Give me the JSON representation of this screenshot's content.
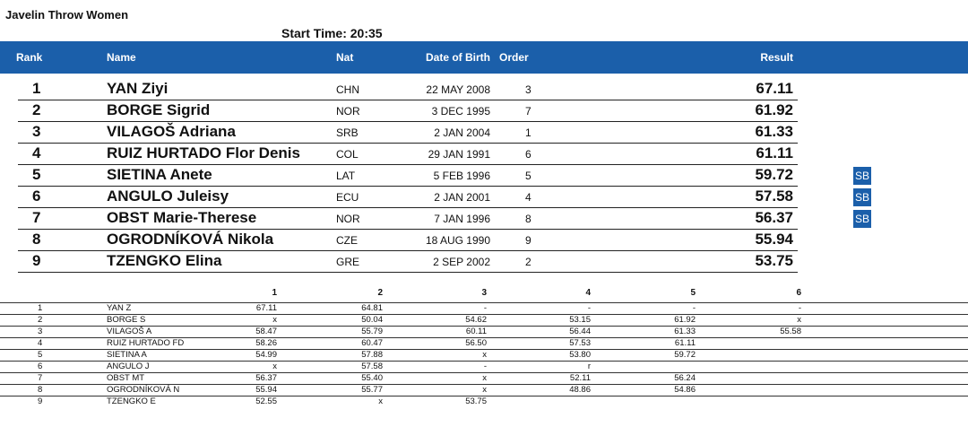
{
  "event": {
    "title": "Javelin Throw Women",
    "start_time_label": "Start Time:",
    "start_time": "20:35"
  },
  "header": {
    "rank": "Rank",
    "name": "Name",
    "nat": "Nat",
    "dob": "Date of Birth",
    "order": "Order",
    "result": "Result"
  },
  "results": [
    {
      "rank": "1",
      "name": "YAN Ziyi",
      "nat": "CHN",
      "dob": "22 MAY 2008",
      "order": "3",
      "result": "67.11",
      "badge": ""
    },
    {
      "rank": "2",
      "name": "BORGE Sigrid",
      "nat": "NOR",
      "dob": "3 DEC 1995",
      "order": "7",
      "result": "61.92",
      "badge": ""
    },
    {
      "rank": "3",
      "name": "VILAGOŠ Adriana",
      "nat": "SRB",
      "dob": "2 JAN 2004",
      "order": "1",
      "result": "61.33",
      "badge": ""
    },
    {
      "rank": "4",
      "name": "RUIZ HURTADO Flor Denis",
      "nat": "COL",
      "dob": "29 JAN 1991",
      "order": "6",
      "result": "61.11",
      "badge": ""
    },
    {
      "rank": "5",
      "name": "SIETINA Anete",
      "nat": "LAT",
      "dob": "5 FEB 1996",
      "order": "5",
      "result": "59.72",
      "badge": "SB"
    },
    {
      "rank": "6",
      "name": "ANGULO Juleisy",
      "nat": "ECU",
      "dob": "2 JAN 2001",
      "order": "4",
      "result": "57.58",
      "badge": "SB"
    },
    {
      "rank": "7",
      "name": "OBST Marie-Therese",
      "nat": "NOR",
      "dob": "7 JAN 1996",
      "order": "8",
      "result": "56.37",
      "badge": "SB"
    },
    {
      "rank": "8",
      "name": "OGRODNÍKOVÁ Nikola",
      "nat": "CZE",
      "dob": "18 AUG 1990",
      "order": "9",
      "result": "55.94",
      "badge": ""
    },
    {
      "rank": "9",
      "name": "TZENGKO Elina",
      "nat": "GRE",
      "dob": "2 SEP 2002",
      "order": "2",
      "result": "53.75",
      "badge": ""
    }
  ],
  "series_header": [
    "1",
    "2",
    "3",
    "4",
    "5",
    "6"
  ],
  "series": [
    {
      "rank": "1",
      "name": "YAN Z",
      "attempts": [
        "67.11",
        "64.81",
        "-",
        "-",
        "-",
        "-"
      ]
    },
    {
      "rank": "2",
      "name": "BORGE S",
      "attempts": [
        "x",
        "50.04",
        "54.62",
        "53.15",
        "61.92",
        "x"
      ]
    },
    {
      "rank": "3",
      "name": "VILAGOŠ A",
      "attempts": [
        "58.47",
        "55.79",
        "60.11",
        "56.44",
        "61.33",
        "55.58"
      ]
    },
    {
      "rank": "4",
      "name": "RUIZ HURTADO FD",
      "attempts": [
        "58.26",
        "60.47",
        "56.50",
        "57.53",
        "61.11",
        ""
      ]
    },
    {
      "rank": "5",
      "name": "SIETINA A",
      "attempts": [
        "54.99",
        "57.88",
        "x",
        "53.80",
        "59.72",
        ""
      ]
    },
    {
      "rank": "6",
      "name": "ANGULO J",
      "attempts": [
        "x",
        "57.58",
        "-",
        "r",
        "",
        ""
      ]
    },
    {
      "rank": "7",
      "name": "OBST MT",
      "attempts": [
        "56.37",
        "55.40",
        "x",
        "52.11",
        "56.24",
        ""
      ]
    },
    {
      "rank": "8",
      "name": "OGRODNÍKOVÁ N",
      "attempts": [
        "55.94",
        "55.77",
        "x",
        "48.86",
        "54.86",
        ""
      ]
    },
    {
      "rank": "9",
      "name": "TZENGKO E",
      "attempts": [
        "52.55",
        "x",
        "53.75",
        "",
        "",
        ""
      ]
    }
  ],
  "colors": {
    "header_bg": "#1b5faa",
    "badge_bg": "#1b5faa"
  }
}
